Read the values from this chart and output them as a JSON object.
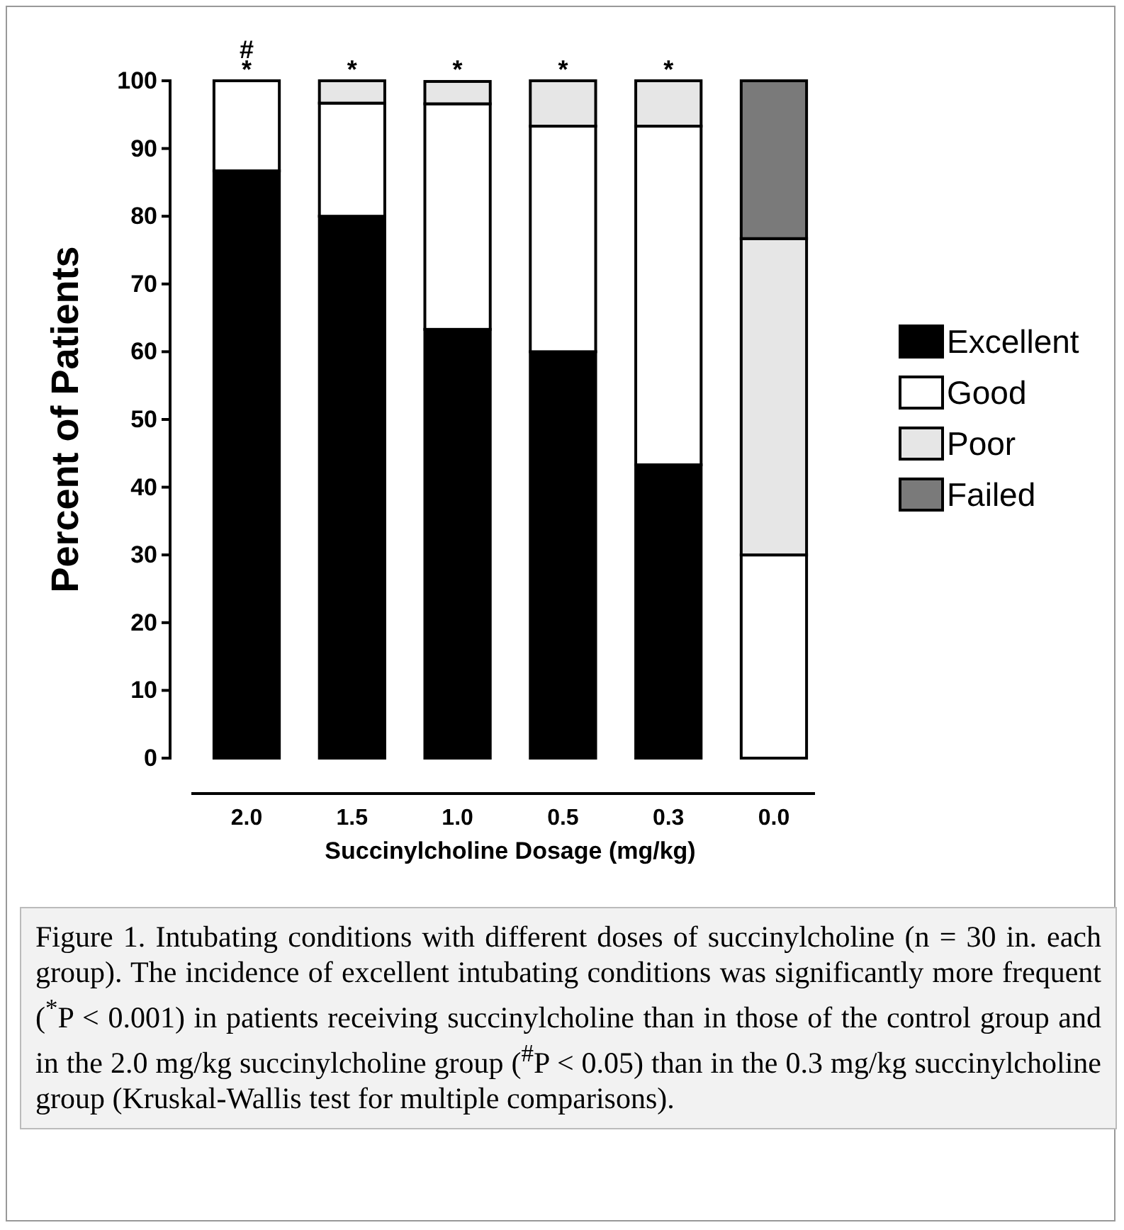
{
  "chart_data": {
    "type": "bar",
    "stacked": true,
    "ylabel": "Percent of Patients",
    "xlabel": "Succinylcholine Dosage (mg/kg)",
    "categories": [
      "2.0",
      "1.5",
      "1.0",
      "0.5",
      "0.3",
      "0.0"
    ],
    "series": [
      {
        "name": "Excellent",
        "color": "#000000",
        "values": [
          86.7,
          80,
          63.3,
          60,
          43.3,
          0
        ]
      },
      {
        "name": "Good",
        "color": "#ffffff",
        "values": [
          13.3,
          16.7,
          33.3,
          33.3,
          50,
          30
        ]
      },
      {
        "name": "Poor",
        "color": "#e6e6e6",
        "values": [
          0,
          3.3,
          3.3,
          6.7,
          6.7,
          46.7
        ]
      },
      {
        "name": "Failed",
        "color": "#7a7a7a",
        "values": [
          0,
          0,
          0,
          0,
          0,
          23.3
        ]
      }
    ],
    "ylim": [
      0,
      100
    ],
    "yticks": [
      0,
      10,
      20,
      30,
      40,
      50,
      60,
      70,
      80,
      90,
      100
    ],
    "grid": false,
    "legend": "right",
    "annotations": [
      {
        "text": "*",
        "x": "2.0",
        "y": 100
      },
      {
        "text": "#",
        "x": "2.0",
        "y": 100
      },
      {
        "text": "*",
        "x": "1.5",
        "y": 100
      },
      {
        "text": "*",
        "x": "1.0",
        "y": 100
      },
      {
        "text": "*",
        "x": "0.5",
        "y": 100
      },
      {
        "text": "*",
        "x": "0.3",
        "y": 100
      },
      "Figure 1. Intubating conditions with different doses of succinylcholine (n = 30 in. each group). The incidence of excellent intubating conditions was significantly more frequent ($^{*}$P < 0.001) in patients receiving succinylcholine than in those of the control group and in the 2.0 mg/kg succinylcholine group ($^{#}$P < 0.05) than in the 0.3 mg/kg succinylcholine group (Kruskal-Wallis test for multiple comparisons)."
    ]
  }
}
